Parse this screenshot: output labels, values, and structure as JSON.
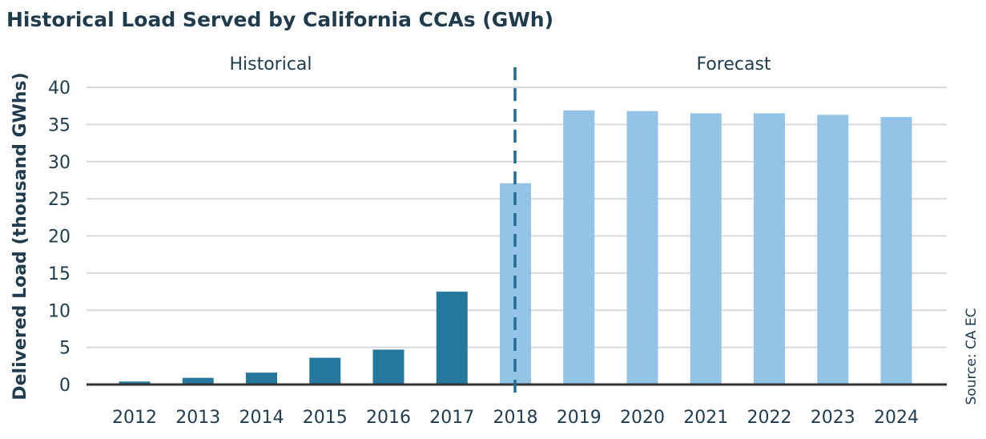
{
  "chart_data": {
    "type": "bar",
    "title": "Historical Load Served by California CCAs (GWh)",
    "ylabel": "Delivered Load (thousand GWhs)",
    "xlabel": "",
    "ylim": [
      0,
      40
    ],
    "yticks": [
      0,
      5,
      10,
      15,
      20,
      25,
      30,
      35,
      40
    ],
    "grid": true,
    "categories": [
      "2012",
      "2013",
      "2014",
      "2015",
      "2016",
      "2017",
      "2018",
      "2019",
      "2020",
      "2021",
      "2022",
      "2023",
      "2024"
    ],
    "values": [
      0.4,
      0.9,
      1.6,
      3.6,
      4.7,
      12.5,
      27.1,
      36.9,
      36.8,
      36.5,
      36.5,
      36.3,
      36.0
    ],
    "bar_colors": [
      "#25789c",
      "#25789c",
      "#25789c",
      "#25789c",
      "#25789c",
      "#25789c",
      "#93c3e6",
      "#93c3e6",
      "#93c3e6",
      "#93c3e6",
      "#93c3e6",
      "#93c3e6",
      "#93c3e6"
    ],
    "annotations": {
      "historical": "Historical",
      "forecast": "Forecast",
      "divider_after": "2017"
    },
    "source": "Source: CA EC"
  }
}
